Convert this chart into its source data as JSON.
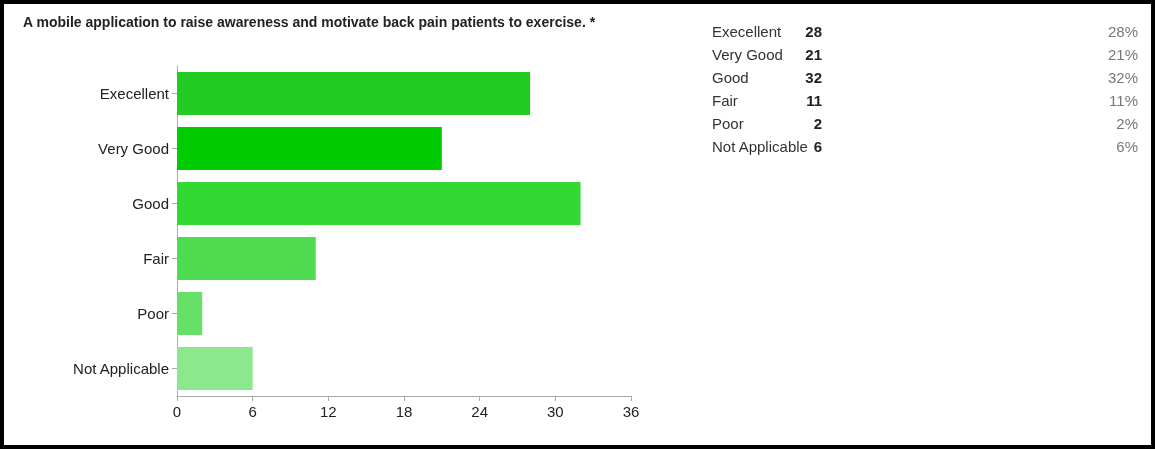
{
  "chart_data": [
    {
      "type": "bar",
      "orientation": "horizontal",
      "title": "A mobile application to raise awareness and motivate back pain patients to exercise. *",
      "categories": [
        "Execellent",
        "Very Good",
        "Good",
        "Fair",
        "Poor",
        "Not Applicable"
      ],
      "values": [
        28,
        21,
        32,
        11,
        2,
        6
      ],
      "colors": [
        "#22cc22",
        "#00cc00",
        "#33d933",
        "#4fdb4f",
        "#66e066",
        "#8ce88c"
      ],
      "xlim": [
        0,
        36
      ],
      "xticks": [
        0,
        6,
        12,
        18,
        24,
        30,
        36
      ],
      "grid": false
    },
    {
      "type": "other",
      "categories": [
        "Execellent",
        "Very Good",
        "Good",
        "Fair",
        "Poor",
        "Not Applicable"
      ],
      "value_labels": [
        "28",
        "21",
        "32",
        "11",
        "2",
        "6"
      ],
      "annotations": [
        "28%",
        "21%",
        "32%",
        "11%",
        "2%",
        "6%"
      ]
    }
  ]
}
